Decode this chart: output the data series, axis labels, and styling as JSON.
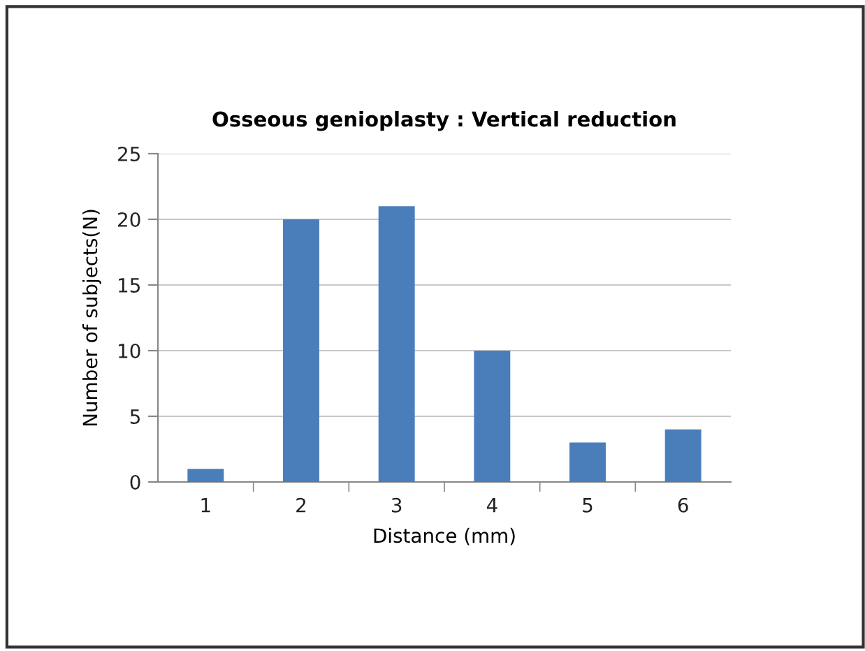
{
  "chart_data": {
    "type": "bar",
    "title": "Osseous genioplasty : Vertical reduction",
    "xlabel": "Distance (mm)",
    "ylabel": "Number of subjects(N)",
    "categories": [
      "1",
      "2",
      "3",
      "4",
      "5",
      "6"
    ],
    "values": [
      1,
      20,
      21,
      10,
      3,
      4
    ],
    "color": "#4a7ebb",
    "ylim": [
      0,
      25
    ],
    "yticks": [
      0,
      5,
      10,
      15,
      20,
      25
    ],
    "grid": "y",
    "legend": false
  }
}
